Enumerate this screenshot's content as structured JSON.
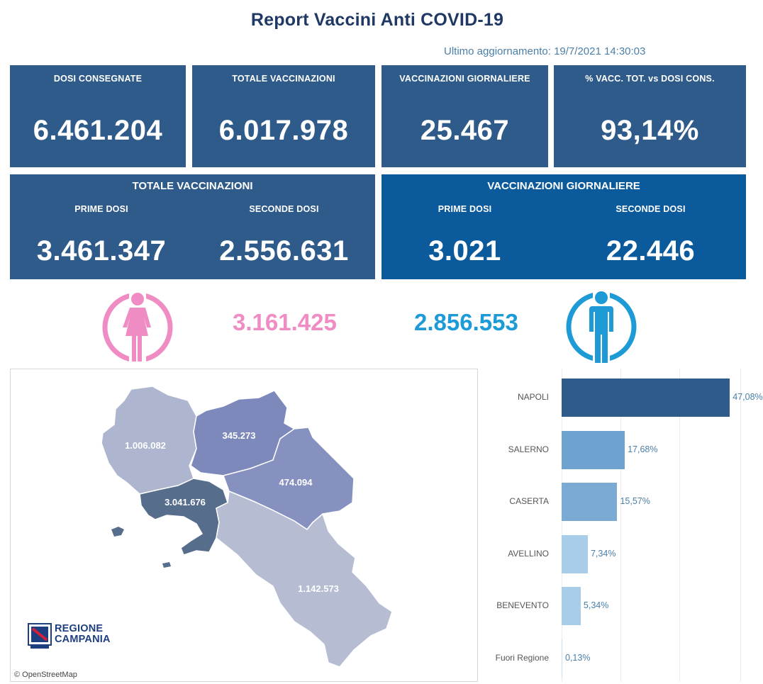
{
  "header": {
    "title": "Report Vaccini Anti COVID-19",
    "updated": "Ultimo aggiornamento: 19/7/2021  14:30:03"
  },
  "kpis": [
    {
      "label": "DOSI  CONSEGNATE",
      "value": "6.461.204"
    },
    {
      "label": "TOTALE VACCINAZIONI",
      "value": "6.017.978"
    },
    {
      "label": "VACCINAZIONI GIORNALIERE",
      "value": "25.467"
    },
    {
      "label": "% VACC. TOT. vs DOSI CONS.",
      "value": "93,14%"
    }
  ],
  "totale": {
    "title": "TOTALE VACCINAZIONI",
    "prime_label": "PRIME DOSI",
    "prime_value": "3.461.347",
    "seconde_label": "SECONDE DOSI",
    "seconde_value": "2.556.631"
  },
  "giornaliere": {
    "title": "VACCINAZIONI GIORNALIERE",
    "prime_label": "PRIME DOSI",
    "prime_value": "3.021",
    "seconde_label": "SECONDE DOSI",
    "seconde_value": "22.446"
  },
  "gender": {
    "female_value": "3.161.425",
    "female_color": "#f08cc4",
    "female_icon": "female-person-icon",
    "male_value": "2.856.553",
    "male_color": "#1e9bd7",
    "male_icon": "male-person-icon"
  },
  "map": {
    "regions": [
      {
        "name": "caserta",
        "value": "1.006.082",
        "color": "#aeb5cf"
      },
      {
        "name": "benevento",
        "value": "345.273",
        "color": "#7d89bb"
      },
      {
        "name": "avellino",
        "value": "474.094",
        "color": "#8691c0"
      },
      {
        "name": "napoli",
        "value": "3.041.676",
        "color": "#566d8c"
      },
      {
        "name": "salerno",
        "value": "1.142.573",
        "color": "#b6bcd2"
      }
    ],
    "credit": "© OpenStreetMap",
    "logo_line1": "REGIONE",
    "logo_line2": "CAMPANIA"
  },
  "chart_data": {
    "type": "bar",
    "orientation": "horizontal",
    "categories": [
      "NAPOLI",
      "SALERNO",
      "CASERTA",
      "AVELLINO",
      "BENEVENTO",
      "Fuori Regione"
    ],
    "values": [
      47.08,
      17.68,
      15.57,
      7.34,
      5.34,
      0.13
    ],
    "labels": [
      "47,08%",
      "17,68%",
      "15,57%",
      "7,34%",
      "5,34%",
      "0,13%"
    ],
    "colors": [
      "#2e5b8a",
      "#6fa3cf",
      "#7aaad3",
      "#a8cde9",
      "#a8cde9",
      "#c9def0"
    ],
    "xlim": [
      0,
      50
    ],
    "grid": true
  }
}
